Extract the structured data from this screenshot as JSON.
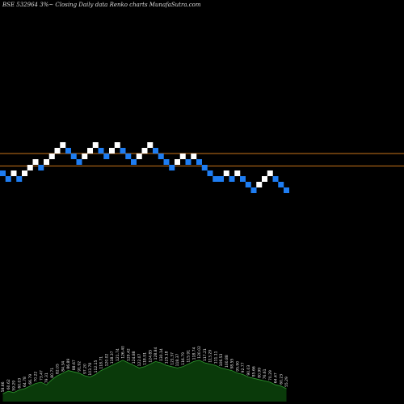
{
  "header": {
    "title": "BSE 532964  3%~  Closing Daily data  Renko  charts MunafaSutra.com"
  },
  "colors": {
    "background": "#000000",
    "up_brick": "#ffffff",
    "down_brick": "#1e7df2",
    "level_line": "#c8741a",
    "volume_fill": "#0a3a0a",
    "volume_line": "#2f9a2f",
    "label_text": "#e6e6e6"
  },
  "chart_data": {
    "type": "renko",
    "brick_size_percent": 3,
    "bricks": [
      {
        "dir": "down",
        "level": 3
      },
      {
        "dir": "down",
        "level": 2
      },
      {
        "dir": "up",
        "level": 3
      },
      {
        "dir": "down",
        "level": 2
      },
      {
        "dir": "up",
        "level": 3
      },
      {
        "dir": "up",
        "level": 4
      },
      {
        "dir": "up",
        "level": 5
      },
      {
        "dir": "down",
        "level": 4
      },
      {
        "dir": "up",
        "level": 5
      },
      {
        "dir": "up",
        "level": 6
      },
      {
        "dir": "up",
        "level": 7
      },
      {
        "dir": "up",
        "level": 8
      },
      {
        "dir": "down",
        "level": 7
      },
      {
        "dir": "down",
        "level": 6
      },
      {
        "dir": "down",
        "level": 5
      },
      {
        "dir": "up",
        "level": 6
      },
      {
        "dir": "up",
        "level": 7
      },
      {
        "dir": "up",
        "level": 8
      },
      {
        "dir": "down",
        "level": 7
      },
      {
        "dir": "down",
        "level": 6
      },
      {
        "dir": "up",
        "level": 7
      },
      {
        "dir": "up",
        "level": 8
      },
      {
        "dir": "down",
        "level": 7
      },
      {
        "dir": "down",
        "level": 6
      },
      {
        "dir": "down",
        "level": 5
      },
      {
        "dir": "up",
        "level": 6
      },
      {
        "dir": "up",
        "level": 7
      },
      {
        "dir": "up",
        "level": 8
      },
      {
        "dir": "down",
        "level": 7
      },
      {
        "dir": "down",
        "level": 6
      },
      {
        "dir": "down",
        "level": 5
      },
      {
        "dir": "down",
        "level": 4
      },
      {
        "dir": "up",
        "level": 5
      },
      {
        "dir": "up",
        "level": 6
      },
      {
        "dir": "down",
        "level": 5
      },
      {
        "dir": "up",
        "level": 6
      },
      {
        "dir": "down",
        "level": 5
      },
      {
        "dir": "down",
        "level": 4
      },
      {
        "dir": "down",
        "level": 3
      },
      {
        "dir": "down",
        "level": 2
      },
      {
        "dir": "down",
        "level": 2
      },
      {
        "dir": "up",
        "level": 3
      },
      {
        "dir": "down",
        "level": 2
      },
      {
        "dir": "up",
        "level": 3
      },
      {
        "dir": "down",
        "level": 2
      },
      {
        "dir": "down",
        "level": 1
      },
      {
        "dir": "down",
        "level": 0
      },
      {
        "dir": "up",
        "level": 1
      },
      {
        "dir": "up",
        "level": 2
      },
      {
        "dir": "up",
        "level": 3
      },
      {
        "dir": "down",
        "level": 2
      },
      {
        "dir": "down",
        "level": 1
      },
      {
        "dir": "down",
        "level": 0
      }
    ],
    "level_lines": [
      {
        "level": 6.5
      },
      {
        "level": 4.3
      }
    ],
    "volume": [
      6,
      8,
      7,
      9,
      10,
      12,
      14,
      15,
      13,
      17,
      20,
      22,
      24,
      23,
      22,
      20,
      19,
      21,
      24,
      26,
      28,
      30,
      32,
      30,
      28,
      26,
      27,
      29,
      31,
      30,
      28,
      27,
      26,
      27,
      29,
      31,
      32,
      30,
      29,
      28,
      26,
      25,
      24,
      22,
      21,
      19,
      18,
      17,
      16,
      15,
      13,
      12,
      10
    ],
    "volume_labels": [
      "58.66",
      "60.62",
      "59.29",
      "60.03",
      "64.78",
      "66.79",
      "70.22",
      "73.47",
      "79.31",
      "80.71",
      "82.05",
      "84.34",
      "86.89",
      "88.67",
      "91.92",
      "97.20",
      "103.78",
      "112.15",
      "118.71",
      "120.02",
      "118.37",
      "121.74",
      "126.40",
      "129.42",
      "124.88",
      "122.07",
      "118.91",
      "124.85",
      "128.84",
      "130.14",
      "125.18",
      "121.37",
      "118.37",
      "116.79",
      "115.91",
      "118.74",
      "120.02",
      "117.21",
      "113.29",
      "111.11",
      "106.53",
      "100.88",
      "98.55",
      "95.90",
      "92.77",
      "90.03",
      "85.66",
      "80.99",
      "76.61",
      "70.29",
      "64.47",
      "60.23",
      "55.29"
    ]
  }
}
